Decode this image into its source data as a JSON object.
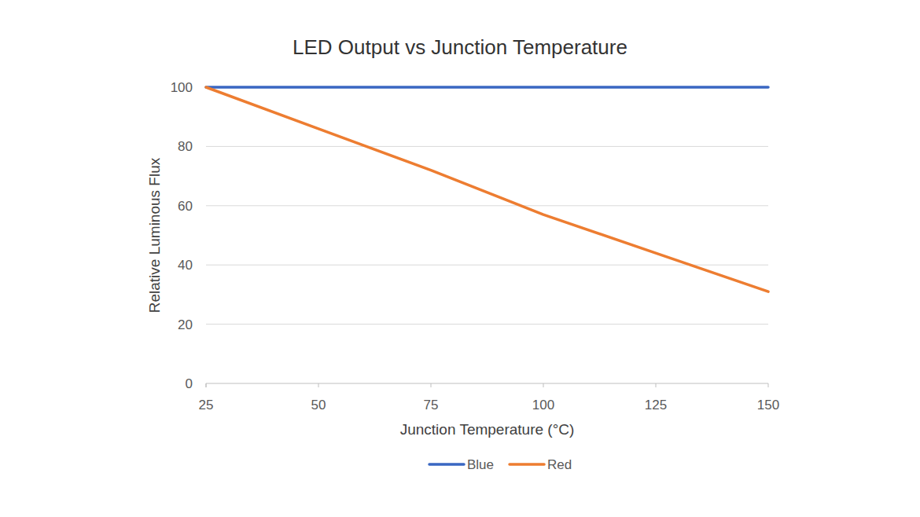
{
  "chart_data": {
    "type": "line",
    "title": "LED Output vs Junction Temperature",
    "x_label": "Junction Temperature (°C)",
    "y_label": "Relative Luminous Flux",
    "x": [
      25,
      50,
      75,
      100,
      125,
      150
    ],
    "series": [
      {
        "name": "Blue",
        "color": "#3a67c2",
        "values": [
          100,
          100,
          100,
          100,
          100,
          100
        ]
      },
      {
        "name": "Red",
        "color": "#ed7d31",
        "values": [
          100,
          86,
          72,
          57,
          44,
          31
        ]
      }
    ],
    "xlim": [
      25,
      150
    ],
    "xticks": [
      25,
      50,
      75,
      100,
      125,
      150
    ],
    "ylim": [
      0,
      100
    ],
    "yticks": [
      0,
      20,
      40,
      60,
      80,
      100
    ],
    "grid": true,
    "legend": "bottom"
  }
}
